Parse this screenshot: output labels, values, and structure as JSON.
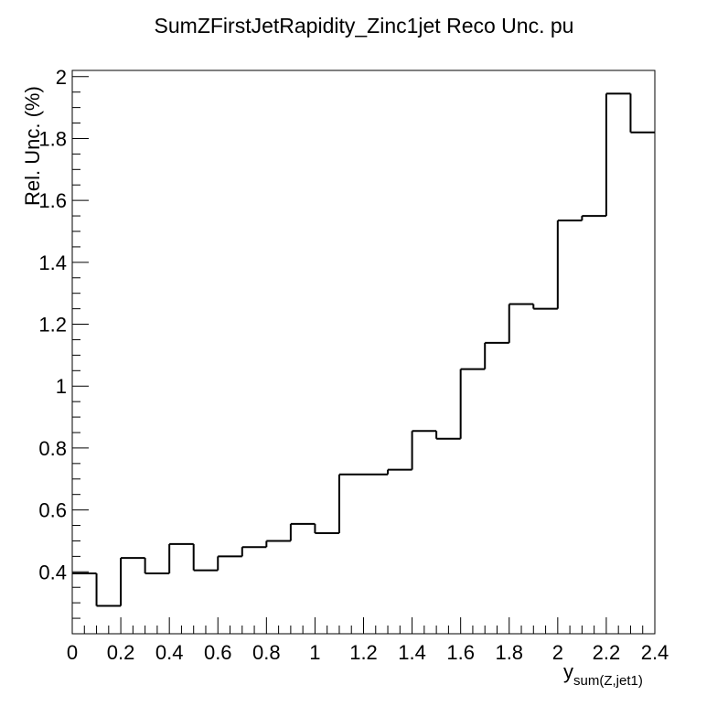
{
  "chart_data": {
    "type": "line",
    "step": true,
    "title": "SumZFirstJetRapidity_Zinc1jet Reco Unc. pu",
    "xlabel": {
      "main": "y",
      "subscript": "sum(Z,jet1)"
    },
    "ylabel": "Rel. Unc. (%)",
    "xlim": [
      0,
      2.4
    ],
    "ylim": [
      0.2,
      2.02
    ],
    "xticks": [
      "0",
      "0.2",
      "0.4",
      "0.6",
      "0.8",
      "1",
      "1.2",
      "1.4",
      "1.6",
      "1.8",
      "2",
      "2.2",
      "2.4"
    ],
    "yticks": [
      "0.4",
      "0.6",
      "0.8",
      "1",
      "1.2",
      "1.4",
      "1.6",
      "1.8",
      "2"
    ],
    "grid": false,
    "bin_edges": [
      0,
      0.1,
      0.2,
      0.3,
      0.4,
      0.5,
      0.6,
      0.7,
      0.8,
      0.9,
      1.0,
      1.1,
      1.2,
      1.3,
      1.4,
      1.5,
      1.6,
      1.7,
      1.8,
      1.9,
      2.0,
      2.1,
      2.2,
      2.3,
      2.4
    ],
    "values": [
      0.395,
      0.29,
      0.445,
      0.395,
      0.49,
      0.405,
      0.45,
      0.48,
      0.5,
      0.555,
      0.525,
      0.715,
      0.715,
      0.73,
      0.855,
      0.83,
      1.055,
      1.14,
      1.265,
      1.25,
      1.535,
      1.55,
      1.945,
      1.82
    ],
    "line_color": "#000000"
  }
}
